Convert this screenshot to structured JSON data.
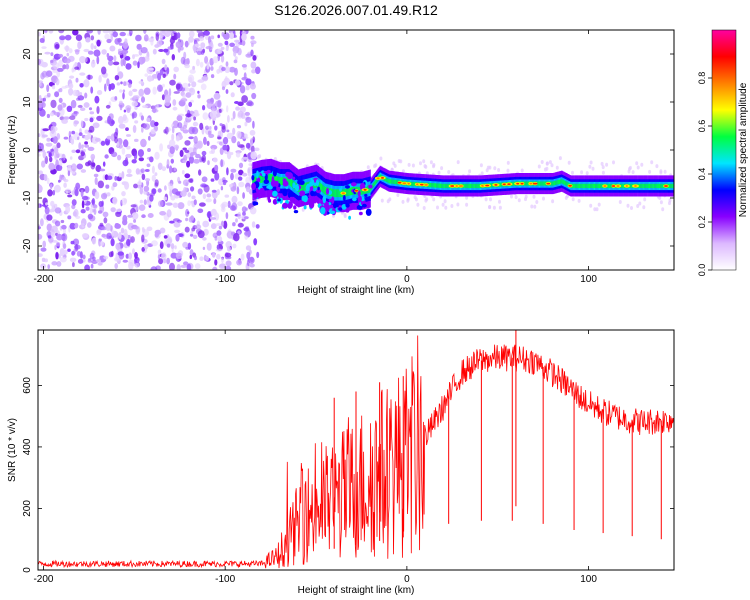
{
  "title": "S126.2026.007.01.49.R12",
  "chart_data": [
    {
      "type": "heatmap",
      "name": "spectrogram",
      "xlabel": "Height of straight line (km)",
      "ylabel": "Frequency (Hz)",
      "xlim": [
        -203,
        147
      ],
      "ylim": [
        -25,
        25
      ],
      "x_ticks": [
        -200,
        -100,
        0,
        100
      ],
      "y_ticks": [
        -20,
        -10,
        0,
        10,
        20
      ],
      "noise_region_x": [
        -203,
        -82
      ],
      "signal_track": [
        {
          "x": -85,
          "y": -6.5
        },
        {
          "x": -80,
          "y": -6
        },
        {
          "x": -75,
          "y": -5.8
        },
        {
          "x": -70,
          "y": -6.5
        },
        {
          "x": -65,
          "y": -6.5
        },
        {
          "x": -60,
          "y": -8
        },
        {
          "x": -55,
          "y": -7.5
        },
        {
          "x": -50,
          "y": -7
        },
        {
          "x": -45,
          "y": -8.5
        },
        {
          "x": -40,
          "y": -9
        },
        {
          "x": -35,
          "y": -9
        },
        {
          "x": -30,
          "y": -8.5
        },
        {
          "x": -25,
          "y": -8.5
        },
        {
          "x": -20,
          "y": -8
        },
        {
          "x": -15,
          "y": -5.5
        },
        {
          "x": -10,
          "y": -6.5
        },
        {
          "x": 0,
          "y": -7
        },
        {
          "x": 20,
          "y": -7.5
        },
        {
          "x": 40,
          "y": -7.5
        },
        {
          "x": 60,
          "y": -7
        },
        {
          "x": 80,
          "y": -7
        },
        {
          "x": 85,
          "y": -6.5
        },
        {
          "x": 90,
          "y": -7.5
        },
        {
          "x": 110,
          "y": -7.5
        },
        {
          "x": 147,
          "y": -7.5
        }
      ],
      "colorbar": {
        "label": "Normalized spectral amplitude",
        "range": [
          0,
          1
        ],
        "ticks": [
          "0.0",
          "0.2",
          "0.4",
          "0.6",
          "0.8"
        ],
        "tick_values": [
          0,
          0.2,
          0.4,
          0.6,
          0.8
        ],
        "colors": [
          "#ffffff",
          "#dcb8ff",
          "#8800ff",
          "#0000ff",
          "#00e5ff",
          "#00ff40",
          "#ffff00",
          "#ff8000",
          "#ff0000",
          "#ff00a0"
        ]
      }
    },
    {
      "type": "line",
      "name": "snr",
      "xlabel": "Height of straight line (km)",
      "ylabel": "SNR (10 * v/v)",
      "xlim": [
        -203,
        147
      ],
      "ylim": [
        0,
        780
      ],
      "x_ticks": [
        -200,
        -100,
        0,
        100
      ],
      "y_ticks": [
        0,
        200,
        400,
        600
      ],
      "series_color": "#ff0000",
      "envelope": [
        {
          "x": -203,
          "y": 20
        },
        {
          "x": -80,
          "y": 20
        },
        {
          "x": -72,
          "y": 40
        },
        {
          "x": -65,
          "y": 100
        },
        {
          "x": -58,
          "y": 170
        },
        {
          "x": -50,
          "y": 200
        },
        {
          "x": -40,
          "y": 230
        },
        {
          "x": -30,
          "y": 260
        },
        {
          "x": -20,
          "y": 300
        },
        {
          "x": -10,
          "y": 330
        },
        {
          "x": 0,
          "y": 360
        },
        {
          "x": 10,
          "y": 430
        },
        {
          "x": 20,
          "y": 530
        },
        {
          "x": 30,
          "y": 640
        },
        {
          "x": 40,
          "y": 680
        },
        {
          "x": 50,
          "y": 690
        },
        {
          "x": 60,
          "y": 690
        },
        {
          "x": 70,
          "y": 680
        },
        {
          "x": 80,
          "y": 640
        },
        {
          "x": 90,
          "y": 590
        },
        {
          "x": 100,
          "y": 540
        },
        {
          "x": 110,
          "y": 510
        },
        {
          "x": 120,
          "y": 490
        },
        {
          "x": 130,
          "y": 480
        },
        {
          "x": 147,
          "y": 490
        }
      ],
      "dropouts": [
        {
          "x": 23,
          "y": 150
        },
        {
          "x": 41,
          "y": 160
        },
        {
          "x": 58,
          "y": 160
        },
        {
          "x": 75,
          "y": 150
        },
        {
          "x": 92,
          "y": 130
        },
        {
          "x": 108,
          "y": 120
        },
        {
          "x": 124,
          "y": 110
        },
        {
          "x": 140,
          "y": 100
        }
      ],
      "spikes": [
        {
          "x": 60,
          "y": 780
        },
        {
          "x": -2,
          "y": 630
        },
        {
          "x": -15,
          "y": 610
        },
        {
          "x": -28,
          "y": 580
        },
        {
          "x": -40,
          "y": 560
        }
      ]
    }
  ]
}
